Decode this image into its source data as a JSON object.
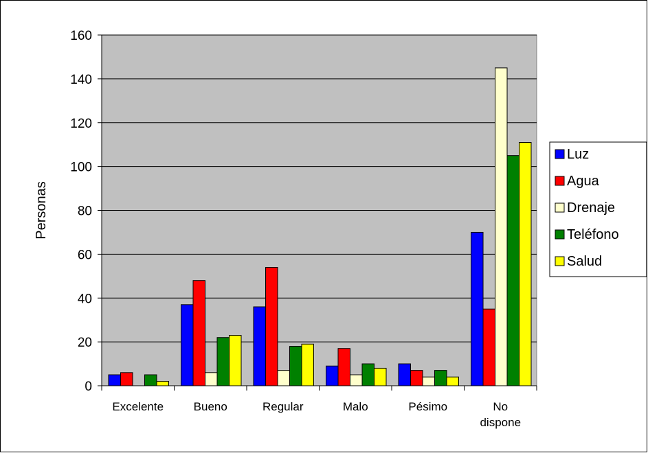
{
  "chart_data": {
    "type": "bar",
    "title": "",
    "xlabel": "",
    "ylabel": "Personas",
    "ylim": [
      0,
      160
    ],
    "yticks": [
      0,
      20,
      40,
      60,
      80,
      100,
      120,
      140,
      160
    ],
    "grid": true,
    "legend_position": "right",
    "plot_background": "#c0c0c0",
    "categories": [
      [
        "Excelente"
      ],
      [
        "Bueno"
      ],
      [
        "Regular"
      ],
      [
        "Malo"
      ],
      [
        "Pésimo"
      ],
      [
        "No",
        "dispone"
      ]
    ],
    "series": [
      {
        "name": "Luz",
        "color": "#0000ff",
        "values": [
          5,
          37,
          36,
          9,
          10,
          70
        ]
      },
      {
        "name": "Agua",
        "color": "#ff0000",
        "values": [
          6,
          48,
          54,
          17,
          7,
          35
        ]
      },
      {
        "name": "Drenaje",
        "color": "#ffffcc",
        "values": [
          0,
          6,
          7,
          5,
          4,
          145
        ]
      },
      {
        "name": "Teléfono",
        "color": "#008000",
        "values": [
          5,
          22,
          18,
          10,
          7,
          105
        ]
      },
      {
        "name": "Salud",
        "color": "#ffff00",
        "values": [
          2,
          23,
          19,
          8,
          4,
          111
        ]
      }
    ]
  }
}
